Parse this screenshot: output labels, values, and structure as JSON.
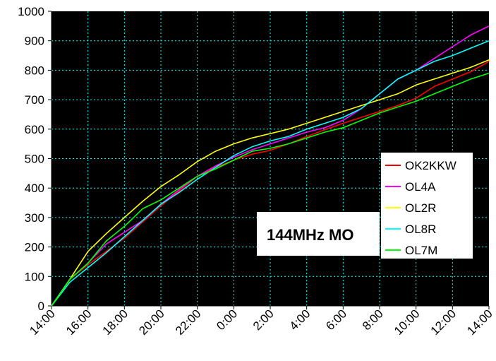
{
  "chart_data": {
    "type": "line",
    "title": "144MHz MO",
    "xlabel": "",
    "ylabel": "",
    "ylim": [
      0,
      1000
    ],
    "yticks": [
      "0",
      "100",
      "200",
      "300",
      "400",
      "500",
      "600",
      "700",
      "800",
      "900",
      "1000"
    ],
    "xticks": [
      "14:00",
      "16:00",
      "18:00",
      "20:00",
      "22:00",
      "0:00",
      "2:00",
      "4:00",
      "6:00",
      "8:00",
      "10:00",
      "12:00",
      "14:00"
    ],
    "x": [
      "14:00",
      "15:00",
      "16:00",
      "17:00",
      "18:00",
      "19:00",
      "20:00",
      "21:00",
      "22:00",
      "23:00",
      "0:00",
      "1:00",
      "2:00",
      "3:00",
      "4:00",
      "5:00",
      "6:00",
      "7:00",
      "8:00",
      "9:00",
      "10:00",
      "11:00",
      "12:00",
      "13:00",
      "14:00"
    ],
    "grid": true,
    "plot_background": "#000000",
    "grid_color": "#00ffff",
    "legend_position": "right-middle",
    "series": [
      {
        "name": "OK2KKW",
        "color": "#ff0000",
        "values": [
          0,
          90,
          140,
          185,
          230,
          285,
          340,
          390,
          440,
          470,
          495,
          515,
          528,
          550,
          575,
          598,
          620,
          640,
          660,
          680,
          705,
          745,
          770,
          795,
          830
        ]
      },
      {
        "name": "OL4A",
        "color": "#ff00ff",
        "values": [
          0,
          90,
          145,
          210,
          250,
          290,
          345,
          395,
          440,
          475,
          505,
          530,
          550,
          570,
          590,
          605,
          630,
          670,
          720,
          770,
          800,
          840,
          880,
          920,
          950
        ]
      },
      {
        "name": "OL2R",
        "color": "#ffff00",
        "values": [
          0,
          90,
          185,
          245,
          300,
          355,
          405,
          445,
          490,
          525,
          550,
          570,
          585,
          600,
          620,
          640,
          660,
          680,
          700,
          720,
          750,
          770,
          790,
          810,
          835
        ]
      },
      {
        "name": "OL8R",
        "color": "#00ffff",
        "values": [
          0,
          80,
          130,
          180,
          235,
          290,
          345,
          385,
          430,
          470,
          510,
          540,
          560,
          575,
          600,
          620,
          640,
          670,
          720,
          770,
          800,
          830,
          850,
          875,
          900
        ]
      },
      {
        "name": "OL7M",
        "color": "#00ff00",
        "values": [
          0,
          90,
          145,
          220,
          270,
          330,
          360,
          400,
          440,
          465,
          495,
          525,
          535,
          550,
          570,
          590,
          605,
          630,
          655,
          675,
          695,
          720,
          745,
          770,
          790
        ]
      }
    ]
  }
}
